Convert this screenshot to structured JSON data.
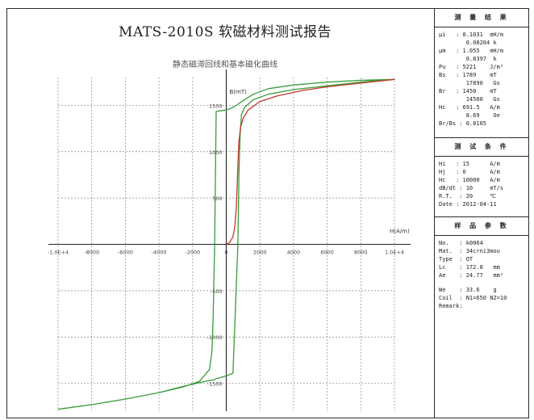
{
  "report": {
    "title": "MATS-2010S 软磁材料测试报告"
  },
  "chart_data": {
    "type": "line",
    "title": "静态磁滞回线和基本磁化曲线",
    "xlabel": "H(A/m)",
    "ylabel": "B(mT)",
    "xlim": [
      -10000,
      10000
    ],
    "ylim": [
      -1800,
      1800
    ],
    "grid": true,
    "x_ticks": [
      -10000,
      -8000,
      -6000,
      -4000,
      -2000,
      0,
      2000,
      4000,
      6000,
      8000,
      10000
    ],
    "x_tick_labels": [
      "-1.0E+4",
      "-8000",
      "-6000",
      "-4000",
      "-2000",
      "0",
      "2000",
      "4000",
      "6000",
      "8000",
      "1.0E+4"
    ],
    "y_ticks": [
      1500,
      1000,
      500,
      0,
      -500,
      -1000,
      -1500
    ],
    "y_tick_labels": [
      "1500",
      "1000",
      "500",
      "",
      "-500",
      "-1000",
      "-1500"
    ],
    "series": [
      {
        "color": "#3a9a3a",
        "x": [
          -10000,
          -8000,
          -6000,
          -4000,
          -2500,
          -1500,
          -1000,
          -800,
          -690,
          -640,
          -600,
          -400,
          0,
          400,
          692,
          760,
          830,
          900,
          1100,
          1600,
          2500,
          4000,
          6000,
          8000,
          10000,
          10000,
          8000,
          6000,
          4000,
          2500,
          1600,
          1000,
          600,
          300,
          0,
          -400,
          -600,
          -691,
          -780,
          -850,
          -1000,
          -1600,
          -2600,
          -4000,
          -6000,
          -8000,
          -10000
        ],
        "y": [
          -1780,
          -1730,
          -1670,
          -1600,
          -1530,
          -1490,
          -1470,
          -1465,
          -1460,
          -1455,
          -1450,
          -1440,
          -1420,
          -1390,
          0,
          800,
          1200,
          1400,
          1480,
          1560,
          1620,
          1670,
          1710,
          1750,
          1780,
          1780,
          1770,
          1750,
          1720,
          1680,
          1620,
          1550,
          1500,
          1470,
          1450,
          1440,
          1435,
          0,
          -800,
          -1150,
          -1350,
          -1480,
          -1540,
          -1600,
          -1670,
          -1730,
          -1780
        ]
      },
      {
        "color": "#c0392b",
        "x": [
          0,
          200,
          400,
          500,
          600,
          650,
          700,
          750,
          850,
          1000,
          1300,
          2000,
          3000,
          4500,
          6000,
          8000,
          10000
        ],
        "y": [
          0,
          20,
          80,
          180,
          400,
          650,
          900,
          1100,
          1260,
          1360,
          1450,
          1540,
          1600,
          1660,
          1700,
          1740,
          1780
        ]
      }
    ]
  },
  "results": {
    "header": "测 量 结 果",
    "lines": [
      "μi   : 0.1031  mH/m",
      "        0.08204 k",
      "μm   : 1.055   mH/m",
      "        0.8397  k",
      "Pu   : 5221    J/m³",
      "Bs   : 1789    mT",
      "        17890   Gs",
      "Br   : 1450    mT",
      "        14500   Gs",
      "Hc   : 691.5   A/m",
      "        8.69    Oe",
      "Br/Bs : 0.8105"
    ]
  },
  "conditions": {
    "header": "测 试 条 件",
    "lines": [
      "Hi   : 15      A/m",
      "Hj   : 0       A/m",
      "Hc   : 10000   A/m",
      "dB/dt : 10     mT/s",
      "R.T.  : 20     ℃",
      "Date : 2012-04-11"
    ]
  },
  "sample": {
    "header": "样 品 参 数",
    "lines_top": [
      "No.   : k0064",
      "Mat.  : 34crni3mou",
      "Type  : OT",
      "Lc    : 172.8   mm",
      "Ae    : 24.77   mm²"
    ],
    "lines_bottom": [
      "We    : 33.6    g",
      "Coil  : N1=650 N2=10",
      "Remark:"
    ]
  }
}
